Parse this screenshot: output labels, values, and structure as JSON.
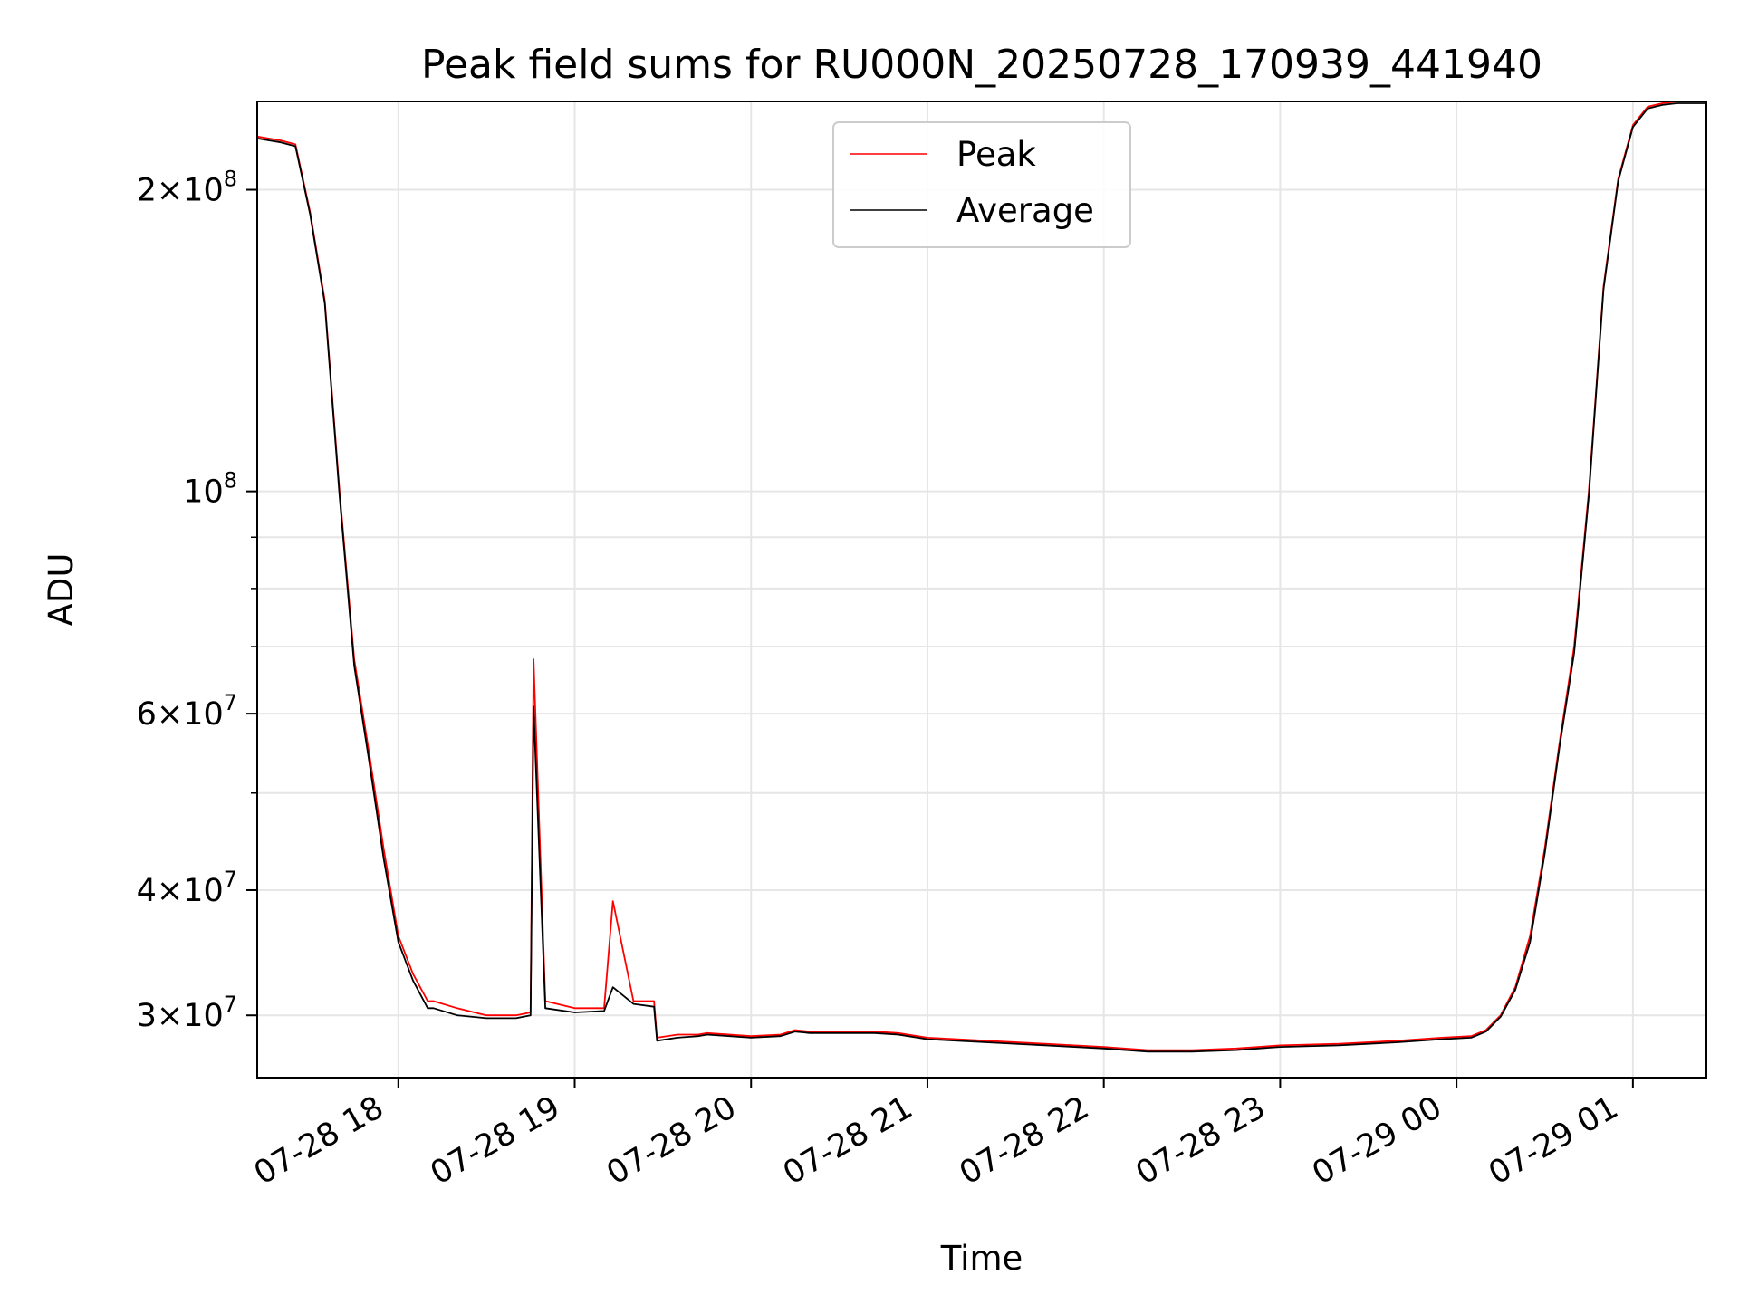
{
  "chart_data": {
    "type": "line",
    "title": "Peak field sums for RU000N_20250728_170939_441940",
    "xlabel": "Time",
    "ylabel": "ADU",
    "yscale": "log",
    "ylim": [
      26000000,
      245000000
    ],
    "xlim": [
      "2025-07-28 17:12",
      "2025-07-29 01:25"
    ],
    "grid": true,
    "legend_position": "upper center",
    "x_ticks": [
      "07-28 18",
      "07-28 19",
      "07-28 20",
      "07-28 21",
      "07-28 22",
      "07-28 23",
      "07-29 00",
      "07-29 01"
    ],
    "y_ticks": [
      {
        "value": 200000000,
        "label": "2×10^8"
      },
      {
        "value": 100000000,
        "label": "10^8"
      },
      {
        "value": 60000000,
        "label": "6×10^7"
      },
      {
        "value": 40000000,
        "label": "4×10^7"
      },
      {
        "value": 30000000,
        "label": "3×10^7"
      }
    ],
    "y_minor_ticks": [
      90000000,
      80000000,
      70000000,
      50000000
    ],
    "x": [
      "2025-07-28 17:12",
      "2025-07-28 17:20",
      "2025-07-28 17:25",
      "2025-07-28 17:30",
      "2025-07-28 17:35",
      "2025-07-28 17:40",
      "2025-07-28 17:45",
      "2025-07-28 17:50",
      "2025-07-28 17:55",
      "2025-07-28 18:00",
      "2025-07-28 18:05",
      "2025-07-28 18:10",
      "2025-07-28 18:12",
      "2025-07-28 18:20",
      "2025-07-28 18:30",
      "2025-07-28 18:40",
      "2025-07-28 18:45",
      "2025-07-28 18:46",
      "2025-07-28 18:50",
      "2025-07-28 19:00",
      "2025-07-28 19:10",
      "2025-07-28 19:13",
      "2025-07-28 19:20",
      "2025-07-28 19:27",
      "2025-07-28 19:28",
      "2025-07-28 19:35",
      "2025-07-28 19:42",
      "2025-07-28 19:45",
      "2025-07-28 20:00",
      "2025-07-28 20:10",
      "2025-07-28 20:15",
      "2025-07-28 20:20",
      "2025-07-28 20:30",
      "2025-07-28 20:42",
      "2025-07-28 20:50",
      "2025-07-28 21:00",
      "2025-07-28 21:20",
      "2025-07-28 21:40",
      "2025-07-28 22:00",
      "2025-07-28 22:15",
      "2025-07-28 22:30",
      "2025-07-28 22:45",
      "2025-07-28 23:00",
      "2025-07-28 23:20",
      "2025-07-28 23:40",
      "2025-07-28 23:55",
      "2025-07-29 00:05",
      "2025-07-29 00:10",
      "2025-07-29 00:15",
      "2025-07-29 00:20",
      "2025-07-29 00:25",
      "2025-07-29 00:30",
      "2025-07-29 00:35",
      "2025-07-29 00:40",
      "2025-07-29 00:45",
      "2025-07-29 00:50",
      "2025-07-29 00:55",
      "2025-07-29 01:00",
      "2025-07-29 01:05",
      "2025-07-29 01:10",
      "2025-07-29 01:15",
      "2025-07-29 01:25"
    ],
    "series": [
      {
        "name": "Peak",
        "color": "#ff0000",
        "values": [
          226000000,
          224000000,
          222000000,
          190000000,
          155000000,
          100000000,
          68000000,
          55000000,
          44000000,
          36000000,
          33000000,
          31000000,
          31000000,
          30500000,
          30000000,
          30000000,
          30200000,
          68000000,
          31000000,
          30500000,
          30500000,
          39000000,
          31000000,
          31000000,
          28500000,
          28700000,
          28700000,
          28800000,
          28600000,
          28700000,
          29000000,
          28900000,
          28900000,
          28900000,
          28800000,
          28500000,
          28300000,
          28100000,
          27900000,
          27700000,
          27700000,
          27800000,
          28000000,
          28100000,
          28300000,
          28500000,
          28600000,
          29000000,
          30000000,
          32000000,
          36000000,
          44000000,
          56000000,
          70000000,
          100000000,
          160000000,
          205000000,
          232000000,
          242000000,
          244000000,
          245000000,
          245000000
        ]
      },
      {
        "name": "Average",
        "color": "#000000",
        "values": [
          225000000,
          223000000,
          221000000,
          189000000,
          154000000,
          99000000,
          67000000,
          54000000,
          43000000,
          35500000,
          32500000,
          30500000,
          30500000,
          30000000,
          29800000,
          29800000,
          30000000,
          61000000,
          30500000,
          30200000,
          30300000,
          32000000,
          30800000,
          30600000,
          28300000,
          28500000,
          28600000,
          28700000,
          28500000,
          28600000,
          28900000,
          28800000,
          28800000,
          28800000,
          28700000,
          28400000,
          28200000,
          28000000,
          27800000,
          27600000,
          27600000,
          27700000,
          27900000,
          28000000,
          28200000,
          28400000,
          28500000,
          28900000,
          29900000,
          31800000,
          35500000,
          43500000,
          55500000,
          69000000,
          99000000,
          159000000,
          204000000,
          231000000,
          241000000,
          243000000,
          244000000,
          244000000
        ]
      }
    ]
  }
}
